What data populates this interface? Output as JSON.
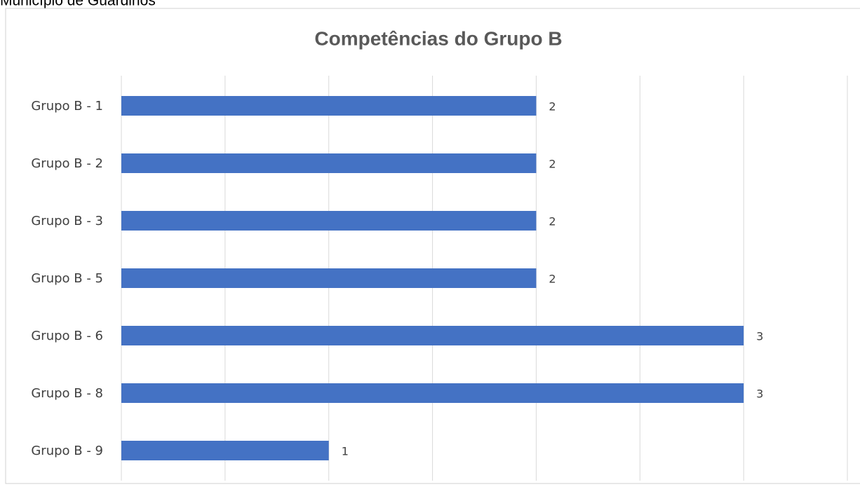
{
  "header": "Município de Guardinos",
  "chart_data": {
    "type": "bar",
    "orientation": "horizontal",
    "title": "Competências do Grupo B",
    "categories": [
      "Grupo B - 1",
      "Grupo B - 2",
      "Grupo B - 3",
      "Grupo B - 5",
      "Grupo B - 6",
      "Grupo B - 8",
      "Grupo B - 9"
    ],
    "values": [
      2,
      2,
      2,
      2,
      3,
      3,
      1
    ],
    "color": "#4472c4",
    "xlim": [
      0,
      3.5
    ],
    "xticks": [
      0,
      0.5,
      1,
      1.5,
      2,
      2.5,
      3,
      3.5
    ],
    "grid": true
  }
}
